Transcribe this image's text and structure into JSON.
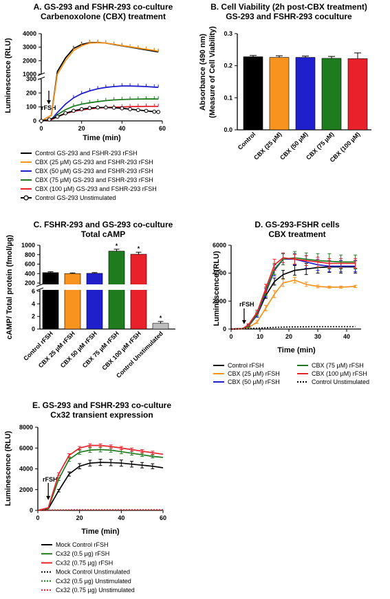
{
  "chart_data": [
    {
      "id": "A",
      "type": "line",
      "title": "A. GS-293 and FSHR-293 co-culture",
      "subtitle": "Carbenoxolone (CBX) treatment",
      "xlabel": "Time (min)",
      "ylabel": "Luminescence (RLU)",
      "xlim": [
        0,
        60
      ],
      "y_break": {
        "lower": [
          0,
          300
        ],
        "upper": [
          1000,
          4000
        ]
      },
      "xticks": [
        "0",
        "20",
        "40",
        "60"
      ],
      "yticks_lower": [
        "0",
        "100",
        "200",
        "300"
      ],
      "yticks_upper": [
        "1000",
        "2000",
        "3000",
        "4000"
      ],
      "annotation": "rFSH",
      "legend_position": "below",
      "series": [
        {
          "name": "Control GS-293 and FSHR-293 rFSH",
          "color": "#000000",
          "marker": "none",
          "x": [
            0,
            5,
            8,
            12,
            16,
            20,
            24,
            28,
            32,
            36,
            40,
            44,
            48,
            52,
            56,
            58
          ],
          "y": [
            0,
            40,
            1200,
            2200,
            2900,
            3200,
            3330,
            3350,
            3300,
            3200,
            3100,
            3000,
            2900,
            2800,
            2700,
            2650
          ]
        },
        {
          "name": "CBX (25 µM) GS-293 and FSHR-293 rFSH",
          "color": "#f7931e",
          "marker": "none",
          "x": [
            0,
            5,
            8,
            12,
            16,
            20,
            24,
            28,
            32,
            36,
            40,
            44,
            48,
            52,
            56,
            58
          ],
          "y": [
            0,
            40,
            1000,
            2000,
            2750,
            3100,
            3300,
            3330,
            3300,
            3220,
            3120,
            3030,
            2940,
            2850,
            2760,
            2700
          ]
        },
        {
          "name": "CBX (50 µM) GS-293 and FSHR-293 rFSH",
          "color": "#1f1fcc",
          "marker": "none",
          "x": [
            0,
            5,
            8,
            12,
            16,
            20,
            24,
            28,
            32,
            36,
            40,
            44,
            48,
            52,
            56,
            58
          ],
          "y": [
            0,
            10,
            60,
            120,
            165,
            195,
            215,
            230,
            240,
            246,
            250,
            250,
            248,
            246,
            242,
            240
          ]
        },
        {
          "name": "CBX (75 µM) GS-293 and FSHR-293 rFSH",
          "color": "#1e7b1e",
          "marker": "none",
          "x": [
            0,
            5,
            8,
            12,
            16,
            20,
            24,
            28,
            32,
            36,
            40,
            44,
            48,
            52,
            56,
            58
          ],
          "y": [
            0,
            10,
            45,
            80,
            105,
            120,
            130,
            138,
            145,
            150,
            153,
            155,
            156,
            157,
            157,
            156
          ]
        },
        {
          "name": "CBX (100 µM) GS-293 and FSHR-293 rFSH",
          "color": "#e8212b",
          "marker": "none",
          "x": [
            0,
            5,
            8,
            12,
            16,
            20,
            24,
            28,
            32,
            36,
            40,
            44,
            48,
            52,
            56,
            58
          ],
          "y": [
            0,
            8,
            30,
            52,
            68,
            78,
            86,
            92,
            96,
            98,
            100,
            102,
            103,
            104,
            104,
            104
          ]
        },
        {
          "name": "Control GS-293 Unstimulated",
          "color": "#000000",
          "marker": "circle",
          "x": [
            0,
            4,
            8,
            12,
            16,
            20,
            24,
            28,
            32,
            36,
            40,
            44,
            48,
            52,
            56,
            58
          ],
          "y": [
            0,
            10,
            30,
            55,
            72,
            84,
            92,
            96,
            96,
            94,
            90,
            84,
            78,
            72,
            66,
            64
          ]
        }
      ]
    },
    {
      "id": "B",
      "type": "bar",
      "title": "B. Cell Viability (2h post-CBX treatment)",
      "subtitle": "GS-293 and FSHR-293 coculture",
      "ylabel": "Absorbance (490 nm)",
      "ylabel2": "(Measure of Cell Viability)",
      "ylim": [
        0,
        0.3
      ],
      "yticks": [
        "0.0",
        "0.1",
        "0.2",
        "0.3"
      ],
      "categories": [
        "Control",
        "CBX (25 µM)",
        "CBX (50 µM)",
        "CBX (75 µM)",
        "CBX (100 µM)"
      ],
      "values": [
        0.228,
        0.226,
        0.226,
        0.223,
        0.222
      ],
      "errors": [
        0.004,
        0.005,
        0.004,
        0.006,
        0.018
      ],
      "colors": [
        "#000000",
        "#f7931e",
        "#1f1fcc",
        "#1e7b1e",
        "#e8212b"
      ]
    },
    {
      "id": "C",
      "type": "bar",
      "title": "C. FSHR-293 and GS-293 co-culture",
      "subtitle": "Total cAMP",
      "ylabel": "cAMP/ Total protein (fmol/µg)",
      "y_break": {
        "lower": [
          0,
          6
        ],
        "upper": [
          200,
          1000
        ]
      },
      "yticks_lower": [
        "0",
        "2",
        "4",
        "6"
      ],
      "yticks_upper": [
        "200",
        "400",
        "600",
        "800",
        "1000"
      ],
      "categories": [
        "Control rFSH",
        "CBX 25 µM rFSH",
        "CBX 50 µM rFSH",
        "CBX 75 µM rFSH",
        "CBX 100 µM rFSH",
        "Control Unstimulated"
      ],
      "values": [
        420,
        400,
        405,
        875,
        810,
        0.9
      ],
      "errors": [
        18,
        14,
        16,
        40,
        42,
        0.3
      ],
      "significance": [
        "",
        "",
        "",
        "*",
        "*",
        "*"
      ],
      "colors": [
        "#000000",
        "#f7931e",
        "#1f1fcc",
        "#1e7b1e",
        "#e8212b",
        "#bdbdbd"
      ]
    },
    {
      "id": "D",
      "type": "line",
      "title": "D. GS-293-FSHR cells",
      "subtitle": "CBX treatment",
      "xlabel": "Time (min)",
      "ylabel": "Luminescence (RLU)",
      "xlim": [
        0,
        45
      ],
      "ylim": [
        0,
        6000
      ],
      "xticks": [
        "0",
        "10",
        "20",
        "30",
        "40"
      ],
      "yticks": [
        "0",
        "2000",
        "4000",
        "6000"
      ],
      "annotation": "rFSH",
      "legend_position": "below",
      "series": [
        {
          "name": "Control  rFSH",
          "color": "#000000",
          "dash": "",
          "x": [
            0,
            4,
            6,
            9,
            12,
            15,
            18,
            22,
            26,
            30,
            34,
            38,
            43
          ],
          "y": [
            0,
            30,
            200,
            1000,
            2400,
            3400,
            3900,
            4200,
            4300,
            4400,
            4450,
            4450,
            4450
          ],
          "err": [
            0,
            0,
            60,
            150,
            200,
            250,
            300,
            350,
            400,
            400,
            400,
            450,
            450
          ]
        },
        {
          "name": "CBX (25 µM) rFSH",
          "color": "#f7931e",
          "dash": "",
          "x": [
            0,
            4,
            6,
            9,
            12,
            15,
            18,
            22,
            26,
            30,
            34,
            38,
            43
          ],
          "y": [
            0,
            20,
            100,
            500,
            1500,
            2500,
            3300,
            3500,
            3200,
            3050,
            3000,
            3000,
            3050
          ],
          "err": [
            0,
            0,
            40,
            100,
            200,
            250,
            250,
            200,
            150,
            100,
            80,
            80,
            80
          ]
        },
        {
          "name": "CBX (50 µM) rFSH",
          "color": "#1f1fcc",
          "dash": "",
          "x": [
            0,
            4,
            6,
            9,
            12,
            15,
            18,
            22,
            26,
            30,
            34,
            38,
            43
          ],
          "y": [
            0,
            30,
            250,
            1000,
            2600,
            4200,
            5000,
            5000,
            4800,
            4600,
            4500,
            4500,
            4500
          ],
          "err": [
            0,
            0,
            80,
            150,
            300,
            400,
            400,
            400,
            450,
            400,
            400,
            400,
            400
          ]
        },
        {
          "name": "CBX (75 µM) rFSH",
          "color": "#1e7b1e",
          "dash": "",
          "x": [
            0,
            4,
            6,
            9,
            12,
            15,
            18,
            22,
            26,
            30,
            34,
            38,
            43
          ],
          "y": [
            0,
            30,
            200,
            1100,
            2700,
            4300,
            5000,
            5100,
            5000,
            4900,
            4850,
            4800,
            4800
          ],
          "err": [
            0,
            0,
            70,
            150,
            300,
            400,
            400,
            450,
            450,
            500,
            550,
            500,
            500
          ]
        },
        {
          "name": "CBX (100 µM) rFSH",
          "color": "#e8212b",
          "dash": "",
          "x": [
            0,
            4,
            6,
            9,
            12,
            15,
            18,
            22,
            26,
            30,
            34,
            38,
            43
          ],
          "y": [
            0,
            30,
            300,
            1200,
            2900,
            4600,
            5100,
            5000,
            4900,
            4800,
            4700,
            4700,
            4700
          ],
          "err": [
            0,
            0,
            80,
            150,
            300,
            400,
            350,
            350,
            350,
            350,
            350,
            350,
            350
          ]
        },
        {
          "name": "Control Unstimulated",
          "color": "#000000",
          "dash": "2,2",
          "x": [
            0,
            5,
            10,
            15,
            20,
            25,
            30,
            35,
            40,
            43
          ],
          "y": [
            0,
            30,
            70,
            120,
            150,
            160,
            170,
            170,
            170,
            170
          ],
          "err": [
            0,
            0,
            0,
            0,
            0,
            0,
            0,
            0,
            0,
            0
          ]
        }
      ]
    },
    {
      "id": "E",
      "type": "line",
      "title": "E. GS-293 and FSHR-293 co-culture",
      "subtitle": "Cx32 transient expression",
      "xlabel": "Time (min)",
      "ylabel": "Luminescence (RLU)",
      "xlim": [
        0,
        60
      ],
      "ylim": [
        0,
        8000
      ],
      "xticks": [
        "0",
        "20",
        "40",
        "60"
      ],
      "yticks": [
        "0",
        "2000",
        "4000",
        "6000",
        "8000"
      ],
      "annotation": "rFSH",
      "legend_position": "below",
      "series": [
        {
          "name": "Mock Control rFSH",
          "color": "#000000",
          "dash": "",
          "x": [
            0,
            5,
            10,
            15,
            20,
            25,
            30,
            35,
            40,
            45,
            50,
            55,
            60
          ],
          "y": [
            0,
            150,
            1900,
            3500,
            4250,
            4550,
            4620,
            4600,
            4550,
            4450,
            4350,
            4250,
            4100
          ],
          "err": [
            0,
            0,
            120,
            200,
            250,
            280,
            300,
            300,
            300,
            280,
            260,
            240,
            0
          ]
        },
        {
          "name": "Cx32 (0.5 µg) rFSH",
          "color": "#1e7b1e",
          "dash": "",
          "x": [
            0,
            5,
            10,
            15,
            20,
            25,
            30,
            35,
            40,
            45,
            50,
            55,
            60
          ],
          "y": [
            0,
            200,
            3000,
            4900,
            5600,
            5800,
            5850,
            5800,
            5650,
            5500,
            5350,
            5200,
            5100
          ],
          "err": [
            0,
            0,
            120,
            180,
            200,
            220,
            220,
            200,
            200,
            180,
            160,
            150,
            0
          ]
        },
        {
          "name": "Cx32 (0.75 µg) rFSH",
          "color": "#e8212b",
          "dash": "",
          "x": [
            0,
            5,
            10,
            15,
            20,
            25,
            30,
            35,
            40,
            45,
            50,
            55,
            60
          ],
          "y": [
            0,
            250,
            3500,
            5300,
            6000,
            6250,
            6250,
            6150,
            6000,
            5850,
            5700,
            5550,
            5400
          ],
          "err": [
            0,
            0,
            120,
            150,
            150,
            150,
            150,
            150,
            150,
            150,
            150,
            150,
            0
          ]
        },
        {
          "name": "Mock Control Unstimulated",
          "color": "#000000",
          "dash": "2,2",
          "x": [
            0,
            10,
            20,
            30,
            40,
            50,
            60
          ],
          "y": [
            0,
            30,
            40,
            40,
            40,
            40,
            40
          ],
          "err": [
            0,
            0,
            0,
            0,
            0,
            0,
            0
          ]
        },
        {
          "name": "Cx32 (0.5 µg) Unstimulated",
          "color": "#1e7b1e",
          "dash": "2,2",
          "x": [
            0,
            10,
            20,
            30,
            40,
            50,
            60
          ],
          "y": [
            0,
            40,
            50,
            50,
            50,
            50,
            50
          ],
          "err": [
            0,
            0,
            0,
            0,
            0,
            0,
            0
          ]
        },
        {
          "name": "Cx32 (0.75 µg) Unstimulated",
          "color": "#e8212b",
          "dash": "2,2",
          "x": [
            0,
            10,
            20,
            30,
            40,
            50,
            60
          ],
          "y": [
            0,
            50,
            60,
            60,
            60,
            60,
            60
          ],
          "err": [
            0,
            0,
            0,
            0,
            0,
            0,
            0
          ]
        }
      ]
    }
  ]
}
